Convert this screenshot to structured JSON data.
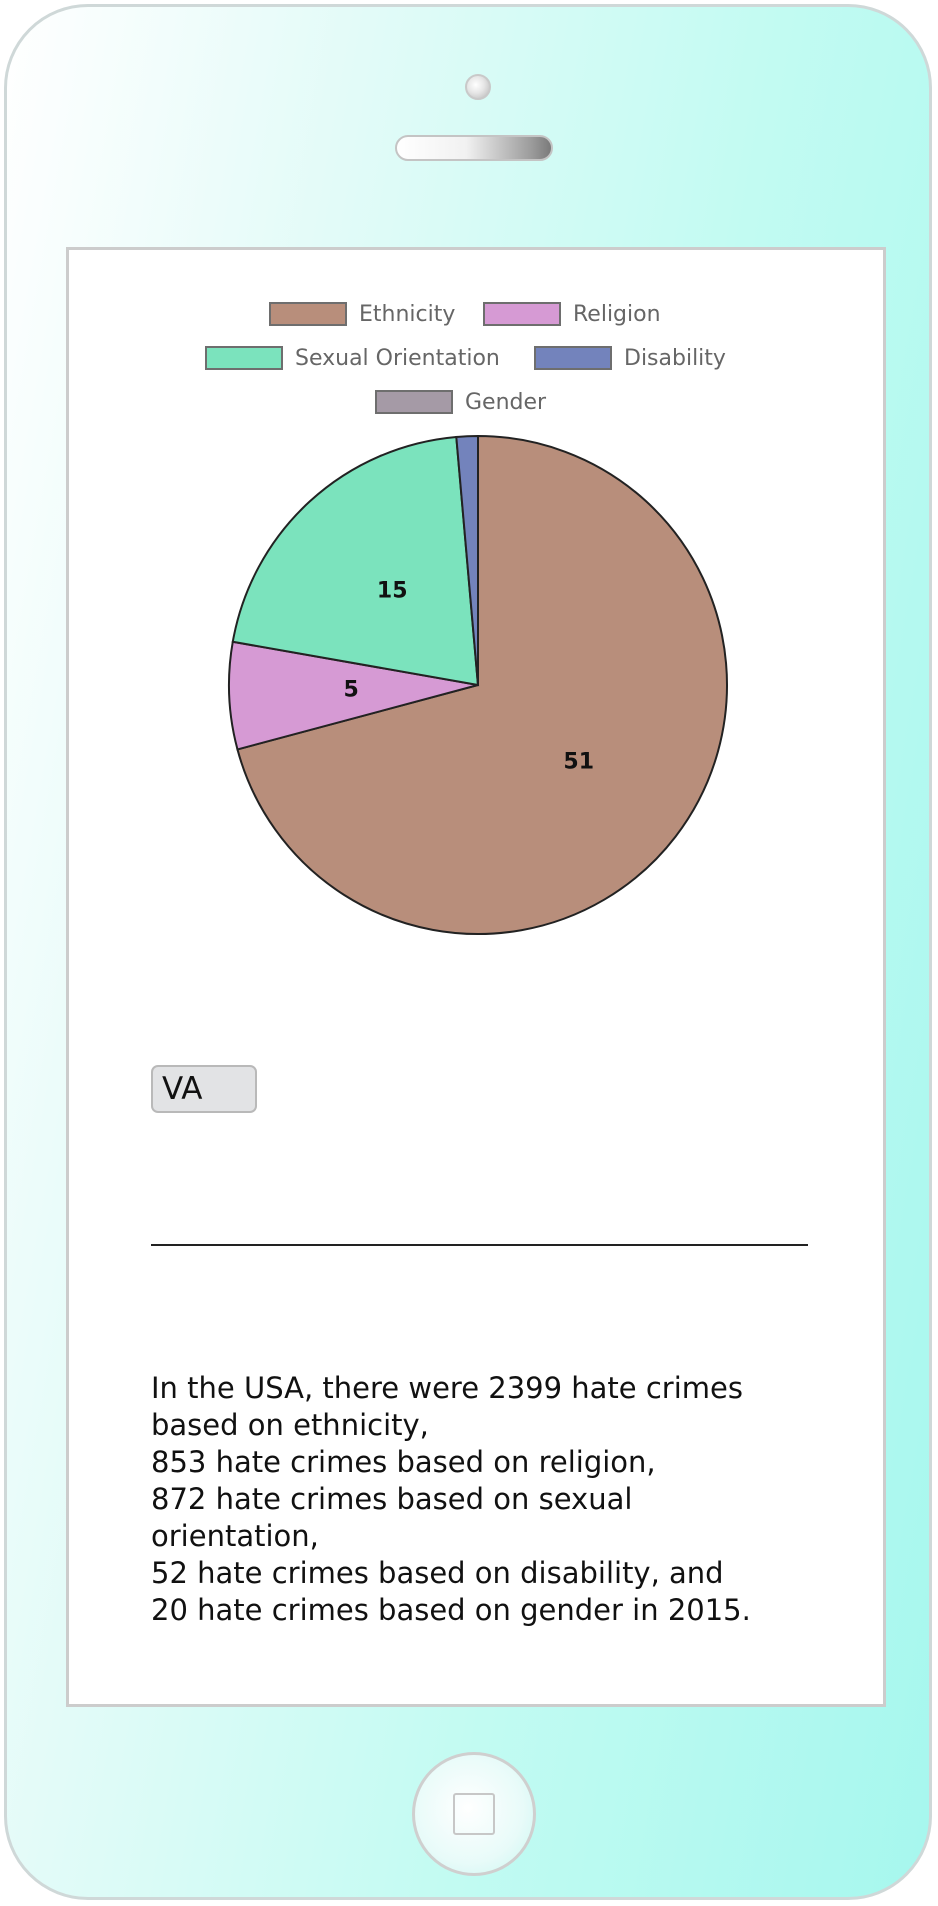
{
  "chart_data": {
    "type": "pie",
    "title": "",
    "categories": [
      "Ethnicity",
      "Religion",
      "Sexual Orientation",
      "Disability",
      "Gender"
    ],
    "values": [
      51,
      5,
      15,
      1,
      0
    ],
    "data_labels": [
      "51",
      "5",
      "15",
      "",
      ""
    ],
    "legend": [
      "Ethnicity",
      "Religion",
      "Sexual Orientation",
      "Disability",
      "Gender"
    ],
    "legend_position": "top",
    "colors": [
      "#b88e7b",
      "#d69ad4",
      "#7be3bd",
      "#7383bc",
      "#a59aa6"
    ]
  },
  "state_select": {
    "value": "VA"
  },
  "summary": {
    "lines": [
      "In the USA, there were 2399 hate crimes",
      "based on ethnicity,",
      "853 hate crimes based on religion,",
      "872 hate crimes based on sexual",
      "orientation,",
      "52 hate crimes based on disability, and",
      "20 hate crimes based on gender in 2015."
    ]
  },
  "icons": {
    "camera": "camera-icon",
    "speaker": "speaker-icon",
    "home": "home-button-icon"
  }
}
